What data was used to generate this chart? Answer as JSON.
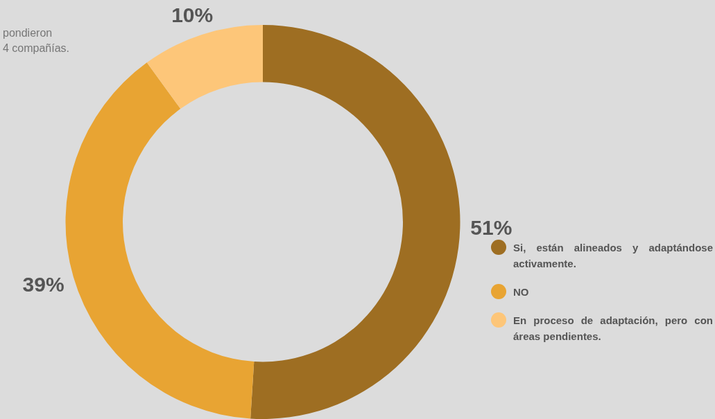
{
  "chart_data": {
    "type": "donut",
    "categories": [
      "Si, están alineados y adaptándose activamente.",
      "NO",
      "En proceso de adaptación, pero con áreas pendientes."
    ],
    "values": [
      51,
      39,
      10
    ],
    "colors": [
      "#9e6e22",
      "#e8a433",
      "#fdc679"
    ],
    "value_labels": [
      "51%",
      "39%",
      "10%"
    ],
    "legend": "right",
    "annotations": [
      "pondieron\n4 compañías."
    ]
  }
}
